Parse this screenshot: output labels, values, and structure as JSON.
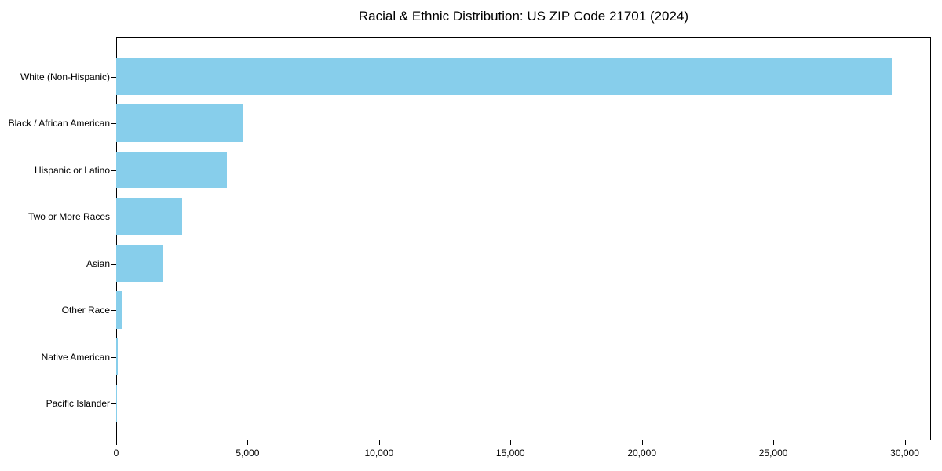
{
  "chart_data": {
    "type": "bar",
    "orientation": "horizontal",
    "title": "Racial & Ethnic Distribution: US ZIP Code 21701 (2024)",
    "categories": [
      "White (Non-Hispanic)",
      "Black / African American",
      "Hispanic or Latino",
      "Two or More Races",
      "Asian",
      "Other Race",
      "Native American",
      "Pacific Islander"
    ],
    "values": [
      29500,
      4800,
      4200,
      2500,
      1800,
      200,
      60,
      25
    ],
    "title_position": "top-center",
    "xlabel": "",
    "ylabel": "",
    "xlim": [
      0,
      31000
    ],
    "x_ticks": [
      0,
      5000,
      10000,
      15000,
      20000,
      25000,
      30000
    ],
    "x_tick_labels": [
      "0",
      "5,000",
      "10,000",
      "15,000",
      "20,000",
      "25,000",
      "30,000"
    ],
    "bar_color": "#87CEEB",
    "axis_color": "#000000",
    "text_color": "#000000",
    "background_color": "#ffffff",
    "grid": false,
    "legend": null
  }
}
